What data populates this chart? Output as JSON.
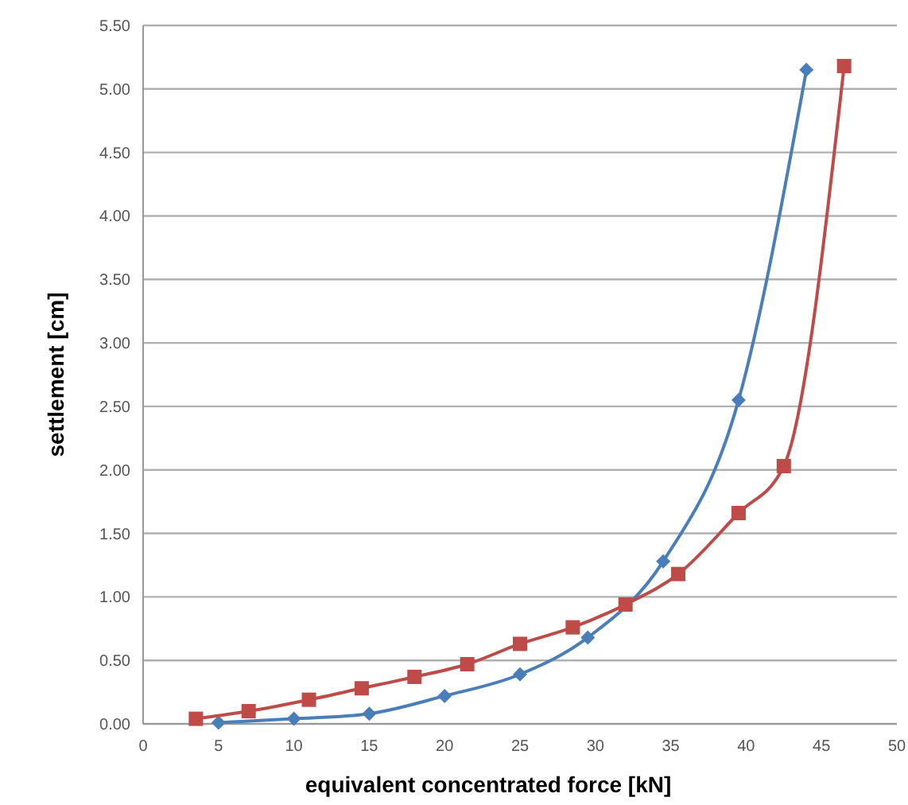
{
  "chart_data": {
    "type": "line",
    "xlabel": "equivalent concentrated force [kN]",
    "ylabel": "settlement [cm]",
    "xlim": [
      0,
      50
    ],
    "xticks": [
      0,
      5,
      10,
      15,
      20,
      25,
      30,
      35,
      40,
      45,
      50
    ],
    "ylim": [
      0,
      5.5
    ],
    "yticks": [
      {
        "value": 0,
        "label": "0.00"
      },
      {
        "value": 0.5,
        "label": "0.50"
      },
      {
        "value": 1,
        "label": "1.00"
      },
      {
        "value": 1.5,
        "label": "1.50"
      },
      {
        "value": 2,
        "label": "2.00"
      },
      {
        "value": 2.5,
        "label": "2.50"
      },
      {
        "value": 3,
        "label": "3.00"
      },
      {
        "value": 3.5,
        "label": "3.50"
      },
      {
        "value": 4,
        "label": "4.00"
      },
      {
        "value": 4.5,
        "label": "4.50"
      },
      {
        "value": 5,
        "label": "5.00"
      },
      {
        "value": 5.5,
        "label": "5.50"
      }
    ],
    "grid": "y",
    "series": [
      {
        "color": "#4a7ebb",
        "marker": "diamond",
        "x": [
          5,
          10,
          15,
          20,
          25,
          29.5,
          34.5,
          39.5,
          44
        ],
        "values": [
          0.01,
          0.04,
          0.08,
          0.22,
          0.39,
          0.68,
          1.28,
          2.55,
          5.15
        ]
      },
      {
        "color": "#be4b48",
        "marker": "square",
        "x": [
          3.5,
          7,
          11,
          14.5,
          18,
          21.5,
          25,
          28.5,
          32,
          35.5,
          39.5,
          42.5,
          46.5
        ],
        "values": [
          0.04,
          0.1,
          0.19,
          0.28,
          0.37,
          0.47,
          0.63,
          0.76,
          0.94,
          1.18,
          1.66,
          2.03,
          5.18
        ]
      }
    ]
  }
}
